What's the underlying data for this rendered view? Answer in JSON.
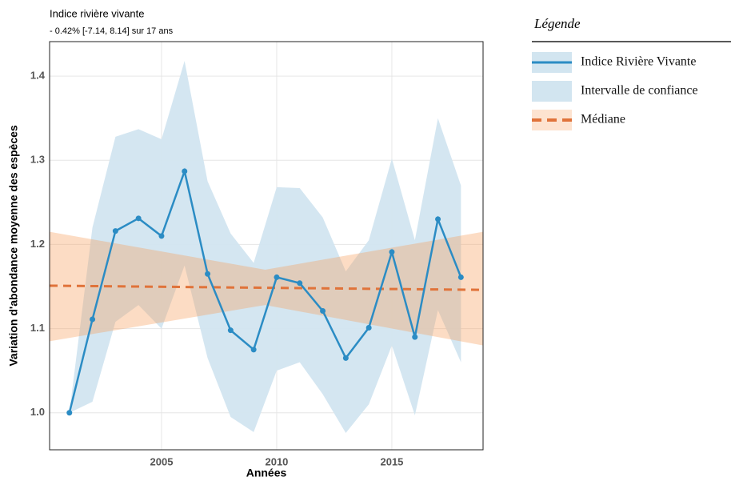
{
  "chart_data": {
    "type": "line",
    "title": "Indice rivière vivante",
    "subtitle": "- 0.42% [-7.14, 8.14] sur 17 ans",
    "x_label": "Années",
    "y_label": "Variation d'abondance moyenne des espèces",
    "legend_title": "Légende",
    "legend_position": "right",
    "grid": true,
    "x": [
      2001,
      2002,
      2003,
      2004,
      2005,
      2006,
      2007,
      2008,
      2009,
      2010,
      2011,
      2012,
      2013,
      2014,
      2015,
      2016,
      2017,
      2018
    ],
    "series": [
      {
        "name": "Indice Rivière Vivante",
        "color": "#2b8cc4",
        "values": [
          1.0,
          1.111,
          1.216,
          1.231,
          1.21,
          1.287,
          1.165,
          1.098,
          1.075,
          1.161,
          1.154,
          1.121,
          1.065,
          1.101,
          1.191,
          1.09,
          1.23,
          1.161
        ]
      }
    ],
    "band": {
      "name": "Intervalle de confiance",
      "color": "#d2e5f0",
      "upper": [
        1.0,
        1.22,
        1.328,
        1.337,
        1.325,
        1.418,
        1.275,
        1.213,
        1.178,
        1.268,
        1.267,
        1.232,
        1.168,
        1.205,
        1.302,
        1.205,
        1.35,
        1.27
      ],
      "lower": [
        1.0,
        1.013,
        1.108,
        1.128,
        1.1,
        1.175,
        1.065,
        0.995,
        0.977,
        1.05,
        1.06,
        1.022,
        0.976,
        1.01,
        1.08,
        0.997,
        1.122,
        1.06
      ]
    },
    "median": {
      "name": "Médiane",
      "color": "#e0733a",
      "x": [
        2000.14,
        2018.96
      ],
      "values": [
        1.151,
        1.146
      ]
    },
    "fan": {
      "color": "#f79a55",
      "x": [
        2000.14,
        2009.5,
        2018.96
      ],
      "lower": [
        1.085,
        1.128,
        1.08
      ],
      "upper": [
        1.215,
        1.17,
        1.215
      ]
    },
    "xlim": [
      2000.14,
      2018.96
    ],
    "ylim": [
      0.956,
      1.441
    ],
    "xticks": [
      2005,
      2010,
      2015
    ],
    "yticks": [
      {
        "value": 1,
        "label": "1.0"
      },
      1.1,
      1.2,
      1.3,
      1.4
    ]
  }
}
